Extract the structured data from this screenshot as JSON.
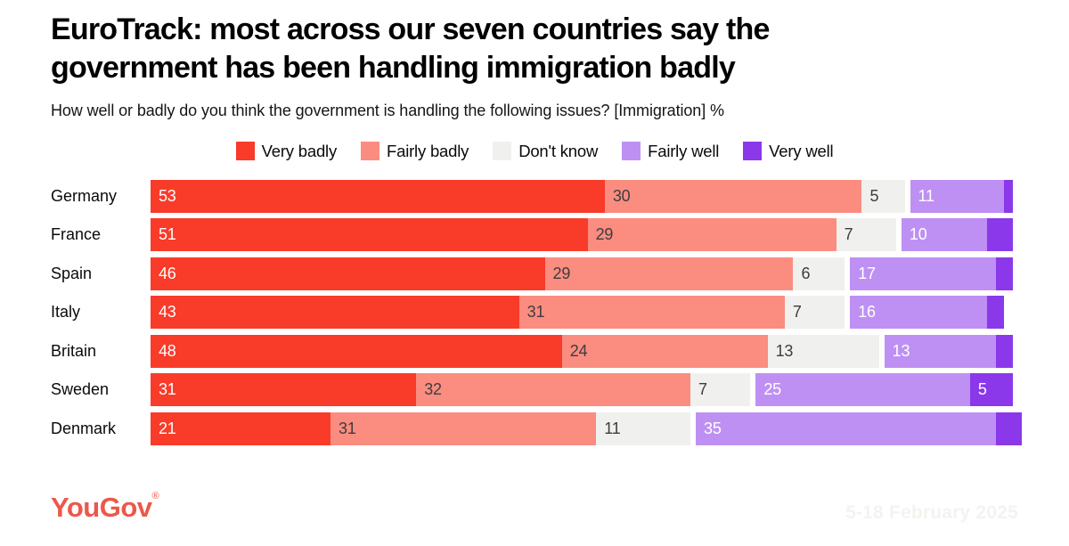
{
  "header": {
    "title_line1": "EuroTrack: most across our seven countries say the",
    "title_line2": "government has been handling immigration badly",
    "subtitle": "How well or badly do you think the government is handling the following issues? [Immigration] %"
  },
  "chart_data": {
    "type": "bar",
    "orientation": "horizontal-stacked",
    "title": "EuroTrack: most across our seven countries say the government has been handling immigration badly",
    "subtitle": "How well or badly do you think the government is handling the following issues? [Immigration] %",
    "xlim": [
      0,
      100
    ],
    "grid": false,
    "legend_position": "top-center",
    "value_label_min": 5,
    "categories": [
      "Germany",
      "France",
      "Spain",
      "Italy",
      "Britain",
      "Sweden",
      "Denmark"
    ],
    "series": [
      {
        "name": "Very badly",
        "color": "#F93B2A",
        "text_color": "#FFFFFF",
        "gap_before": false,
        "values": [
          53,
          51,
          46,
          43,
          48,
          31,
          21
        ]
      },
      {
        "name": "Fairly badly",
        "color": "#FA8D80",
        "text_color": "#3D3D3D",
        "gap_before": false,
        "values": [
          30,
          29,
          29,
          31,
          24,
          32,
          31
        ]
      },
      {
        "name": "Don't know",
        "color": "#F0F0EE",
        "text_color": "#3D3D3D",
        "gap_before": false,
        "values": [
          5,
          7,
          6,
          7,
          13,
          7,
          11
        ]
      },
      {
        "name": "Fairly well",
        "color": "#BF90F3",
        "text_color": "#FFFFFF",
        "gap_before": true,
        "values": [
          11,
          10,
          17,
          16,
          13,
          25,
          35
        ]
      },
      {
        "name": "Very well",
        "color": "#8B38EA",
        "text_color": "#FFFFFF",
        "gap_before": false,
        "values": [
          1,
          3,
          2,
          2,
          2,
          5,
          3
        ]
      }
    ]
  },
  "footer": {
    "logo": "YouGov",
    "logo_registered": "®",
    "logo_color": "#EC584A",
    "date_range": "5-18 February 2025",
    "date_color": "#F3F3F0"
  },
  "colors": {
    "background": "#FFFFFF",
    "title_text": "#000000",
    "segment_dark_text": "#3D3D3D",
    "segment_light_text": "#FFFFFF"
  }
}
